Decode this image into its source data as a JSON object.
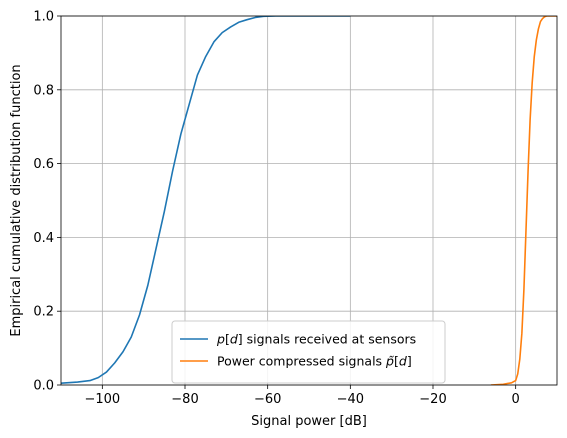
{
  "chart_data": {
    "type": "line",
    "xlabel": "Signal power [dB]",
    "ylabel": "Empirical cumulative distribution function",
    "xlim": [
      -110,
      10
    ],
    "ylim": [
      0,
      1
    ],
    "grid": true,
    "legend_position": "lower-center",
    "x_ticks": [
      -100,
      -80,
      -60,
      -40,
      -20,
      0
    ],
    "x_tick_labels": [
      "−100",
      "−80",
      "−60",
      "−40",
      "−20",
      "0"
    ],
    "y_ticks": [
      0,
      0.2,
      0.4,
      0.6,
      0.8,
      1.0
    ],
    "y_tick_labels": [
      "0.0",
      "0.2",
      "0.4",
      "0.6",
      "0.8",
      "1.0"
    ],
    "series": [
      {
        "name": "p[d] signals received at sensors",
        "name_parts": {
          "italic": "p",
          "bracket": "[",
          "var": "d",
          "close": "]",
          "rest": " signals received at sensors"
        },
        "color": "#1f77b4",
        "x": [
          -110,
          -106,
          -103,
          -101,
          -99,
          -97,
          -95,
          -93,
          -91,
          -89,
          -87,
          -85,
          -83,
          -81,
          -79,
          -77,
          -75,
          -73,
          -71,
          -69,
          -67,
          -65,
          -63,
          -61,
          -58,
          -55,
          -50,
          -45,
          -40
        ],
        "y": [
          0.005,
          0.008,
          0.012,
          0.02,
          0.035,
          0.06,
          0.09,
          0.13,
          0.19,
          0.27,
          0.37,
          0.47,
          0.58,
          0.68,
          0.76,
          0.84,
          0.89,
          0.93,
          0.955,
          0.97,
          0.983,
          0.99,
          0.996,
          0.999,
          1.0,
          1.0,
          1.0,
          1.0,
          1.0
        ]
      },
      {
        "name": "Power compressed signals p̃[d]",
        "name_parts": {
          "rest": "Power compressed signals ",
          "italic": "p̃",
          "bracket": "[",
          "var": "d",
          "close": "]"
        },
        "color": "#ff7f0e",
        "x": [
          -6,
          -3,
          -1,
          0,
          0.5,
          1,
          1.5,
          2,
          2.5,
          3,
          3.5,
          4,
          4.5,
          5,
          5.5,
          6,
          6.5,
          7,
          7.5,
          8,
          10
        ],
        "y": [
          0.0,
          0.002,
          0.006,
          0.012,
          0.03,
          0.07,
          0.14,
          0.26,
          0.42,
          0.58,
          0.72,
          0.82,
          0.89,
          0.935,
          0.965,
          0.985,
          0.993,
          0.998,
          1.0,
          1.0,
          1.0
        ]
      }
    ]
  }
}
